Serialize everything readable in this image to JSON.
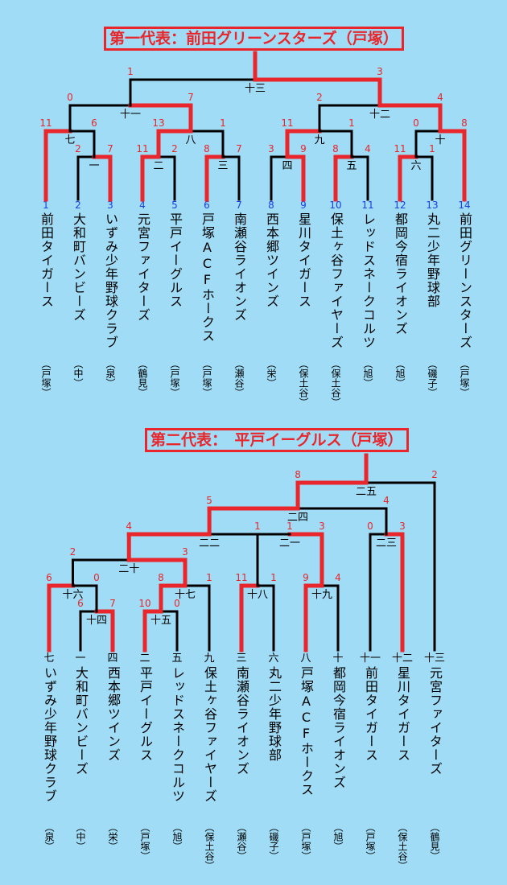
{
  "colors": {
    "background": "#a0dcf6",
    "winner": "#e8262b",
    "loser": "#000000",
    "score": "#e8262b",
    "number": "#1a3fe0"
  },
  "sections": [
    {
      "title": "第一代表：前田グリーンスターズ（戸塚）",
      "teams": [
        {
          "num": "1",
          "name": "前田タイガース",
          "region": "（戸塚）"
        },
        {
          "num": "2",
          "name": "大和町バンビーズ",
          "region": "（中）"
        },
        {
          "num": "3",
          "name": "いずみ少年野球クラブ",
          "region": "（泉）"
        },
        {
          "num": "4",
          "name": "元宮ファイターズ",
          "region": "（鶴見）"
        },
        {
          "num": "5",
          "name": "平戸イーグルス",
          "region": "（戸塚）"
        },
        {
          "num": "6",
          "name": "戸塚ACFホークス",
          "region": "（戸塚）"
        },
        {
          "num": "7",
          "name": "南瀬谷ライオンズ",
          "region": "（瀬谷）"
        },
        {
          "num": "8",
          "name": "西本郷ツインズ",
          "region": "（栄）"
        },
        {
          "num": "9",
          "name": "星川タイガース",
          "region": "（保土谷）"
        },
        {
          "num": "10",
          "name": "保土ヶ谷ファイヤーズ",
          "region": "（保土谷）"
        },
        {
          "num": "11",
          "name": "レッドスネークコルツ",
          "region": "（旭）"
        },
        {
          "num": "12",
          "name": "都岡今宿ライオンズ",
          "region": "（旭）"
        },
        {
          "num": "13",
          "name": "丸二少年野球部",
          "region": "（磯子）"
        },
        {
          "num": "14",
          "name": "前田グリーンスターズ",
          "region": "（戸塚）"
        }
      ],
      "matches": [
        {
          "game": "一",
          "left_score": "2",
          "right_score": "7"
        },
        {
          "game": "二",
          "left_score": "11",
          "right_score": "2"
        },
        {
          "game": "三",
          "left_score": "8",
          "right_score": "7"
        },
        {
          "game": "四",
          "left_score": "3",
          "right_score": "9"
        },
        {
          "game": "五",
          "left_score": "8",
          "right_score": "4"
        },
        {
          "game": "六",
          "left_score": "11",
          "right_score": "1"
        },
        {
          "game": "七",
          "left_score": "11",
          "right_score": "6"
        },
        {
          "game": "八",
          "left_score": "13",
          "right_score": "1"
        },
        {
          "game": "九",
          "left_score": "11",
          "right_score": "1"
        },
        {
          "game": "十",
          "left_score": "0",
          "right_score": "8"
        },
        {
          "game": "十一",
          "left_score": "0",
          "right_score": "7"
        },
        {
          "game": "十二",
          "left_score": "2",
          "right_score": "4"
        },
        {
          "game": "十三",
          "left_score": "1",
          "right_score": "3"
        }
      ]
    },
    {
      "title": "第二代表：　平戸イーグルス（戸塚）",
      "teams": [
        {
          "num": "七",
          "name": "いずみ少年野球クラブ",
          "region": "（泉）"
        },
        {
          "num": "一",
          "name": "大和町バンビーズ",
          "region": "（中）"
        },
        {
          "num": "四",
          "name": "西本郷ツインズ",
          "region": "（栄）"
        },
        {
          "num": "二",
          "name": "平戸イーグルス",
          "region": "（戸塚）"
        },
        {
          "num": "五",
          "name": "レッドスネークコルツ",
          "region": "（旭）"
        },
        {
          "num": "九",
          "name": "保土ヶ谷ファイヤーズ",
          "region": "（保土谷）"
        },
        {
          "num": "三",
          "name": "南瀬谷ライオンズ",
          "region": "（瀬谷）"
        },
        {
          "num": "六",
          "name": "丸二少年野球部",
          "region": "（磯子）"
        },
        {
          "num": "八",
          "name": "戸塚ACFホークス",
          "region": "（戸塚）"
        },
        {
          "num": "十",
          "name": "都岡今宿ライオンズ",
          "region": "（旭）"
        },
        {
          "num": "十一",
          "name": "前田タイガース",
          "region": "（戸塚）"
        },
        {
          "num": "十二",
          "name": "星川タイガース",
          "region": "（保土谷）"
        },
        {
          "num": "十三",
          "name": "元宮ファイターズ",
          "region": "（鶴見）"
        }
      ],
      "matches": [
        {
          "game": "十四",
          "left_score": "6",
          "right_score": "7"
        },
        {
          "game": "十五",
          "left_score": "10",
          "right_score": "0"
        },
        {
          "game": "十六",
          "left_score": "6",
          "right_score": "0"
        },
        {
          "game": "十七",
          "left_score": "8",
          "right_score": "1"
        },
        {
          "game": "十八",
          "left_score": "11",
          "right_score": "1"
        },
        {
          "game": "十九",
          "left_score": "9",
          "right_score": "4"
        },
        {
          "game": "二十",
          "left_score": "2",
          "right_score": "3"
        },
        {
          "game": "二一",
          "left_score": "1",
          "right_score": "3"
        },
        {
          "game": "二二",
          "left_score": "4",
          "right_score": "1"
        },
        {
          "game": "二三",
          "left_score": "0",
          "right_score": "3"
        },
        {
          "game": "二四",
          "left_score": "5",
          "right_score": "4"
        },
        {
          "game": "二五",
          "left_score": "8",
          "right_score": "2"
        }
      ]
    }
  ]
}
